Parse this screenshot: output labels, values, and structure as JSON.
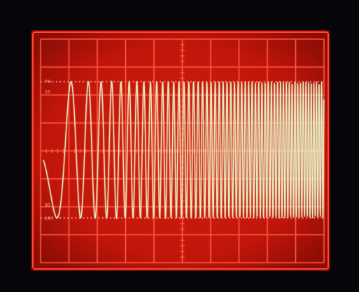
{
  "graticule_labels": {
    "top": [
      "0%",
      "10"
    ],
    "bottom": [
      "90",
      "100"
    ]
  }
}
